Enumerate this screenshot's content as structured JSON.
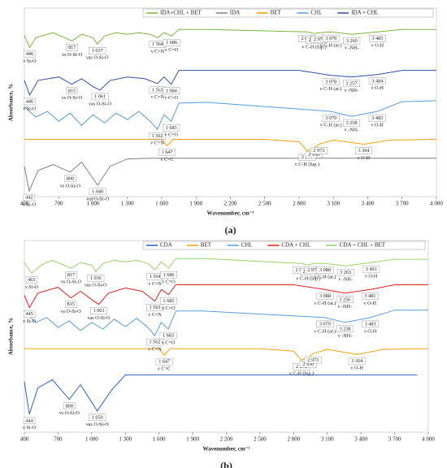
{
  "chart_data": [
    {
      "type": "line",
      "panel_label": "(a)",
      "x_label": "Wavenumber, cm⁻¹",
      "y_label": "Absorbance, %",
      "xlim": [
        400,
        4000
      ],
      "ylim": [
        0,
        100
      ],
      "xticks": [
        400,
        700,
        {
          "value": 1000,
          "label": "1 000"
        },
        {
          "value": 1300,
          "label": "1 300"
        },
        {
          "value": 1600,
          "label": "1 600"
        },
        {
          "value": 1900,
          "label": "1 900"
        },
        {
          "value": 2200,
          "label": "2 200"
        },
        {
          "value": 2500,
          "label": "2 500"
        },
        {
          "value": 2800,
          "label": "2 800"
        },
        {
          "value": 3100,
          "label": "3 100"
        },
        {
          "value": 3400,
          "label": "3 400"
        },
        {
          "value": 3700,
          "label": "3 700"
        },
        {
          "value": 4000,
          "label": "4 000"
        }
      ],
      "series": [
        {
          "name": "IDA+CHL + BET",
          "color": "#7cb342",
          "x": [
            400,
            446,
            500,
            650,
            817,
            900,
            1000,
            1037,
            1100,
            1200,
            1300,
            1400,
            1500,
            1564,
            1620,
            1686,
            1750,
            2000,
            2867,
            2932,
            2976,
            3079,
            3260,
            3485,
            3700,
            4000
          ],
          "values": [
            85.7,
            79.1,
            84.3,
            87.0,
            82.6,
            86.1,
            84.3,
            80.9,
            85.2,
            87.0,
            86.1,
            87.0,
            86.1,
            84.3,
            87.0,
            85.2,
            88.7,
            88.7,
            87.4,
            86.5,
            87.0,
            87.4,
            86.1,
            87.4,
            88.7,
            88.7
          ],
          "annotations": [
            {
              "value": 446,
              "label": "446",
              "text": "ν Si-O"
            },
            {
              "value": 817,
              "label": "817",
              "text": "νs O-Si-O"
            },
            {
              "value": 1037,
              "label": "1 037",
              "text": "νas O-Si-O"
            },
            {
              "value": 1564,
              "label": "1 564",
              "text": "ν C=N"
            },
            {
              "value": 1686,
              "label": "1 686",
              "text": "ν C=O"
            },
            {
              "value": 2867,
              "label": "2 867"
            },
            {
              "value": 2932,
              "label": "2 932",
              "text": "ν C-H (lup.)"
            },
            {
              "value": 2976,
              "label": "2 976"
            },
            {
              "value": 3079,
              "label": "3 079",
              "text": "ν C-H (ar.)"
            },
            {
              "value": 3260,
              "label": "3 260",
              "text": "ν -NH-"
            },
            {
              "value": 3485,
              "label": "3 485",
              "text": "ν O-H"
            }
          ]
        },
        {
          "name": "IDA",
          "color": "#808080",
          "x": [
            400,
            442,
            520,
            650,
            800,
            900,
            1040,
            1150,
            1300,
            1500,
            2000,
            4000
          ],
          "values": [
            16.1,
            3.0,
            13.9,
            17.0,
            13.0,
            18.3,
            6.1,
            16.1,
            20.0,
            20.4,
            20.4,
            20.4
          ],
          "annotations": [
            {
              "value": 442,
              "label": "442",
              "text": "ν Si-O"
            },
            {
              "value": 800,
              "label": "800",
              "text": "νs O-Si-O"
            },
            {
              "value": 1040,
              "label": "1 040",
              "text": "νas O-Si-O"
            }
          ]
        },
        {
          "name": "BET",
          "color": "#f0a30a",
          "x": [
            400,
            1000,
            1600,
            1647,
            1700,
            2500,
            2800,
            2870,
            2930,
            2973,
            3100,
            3364,
            3600,
            4000
          ],
          "values": [
            30.4,
            30.4,
            30.4,
            27.0,
            30.4,
            30.4,
            29.1,
            24.3,
            25.7,
            27.8,
            30.0,
            27.8,
            30.0,
            30.4
          ],
          "annotations": [
            {
              "value": 1647,
              "label": "1 647",
              "text": "ν C=C"
            },
            {
              "value": 2870,
              "label": "2 870",
              "text": "ν C-H (lup.)"
            },
            {
              "value": 2930,
              "label": "2 930"
            },
            {
              "value": 2973,
              "label": "2 973"
            },
            {
              "value": 3364,
              "label": "3 364",
              "text": "ν O-H"
            }
          ]
        },
        {
          "name": "CHL",
          "color": "#5b9bd5",
          "x": [
            400,
            500,
            600,
            700,
            800,
            900,
            1000,
            1100,
            1200,
            1300,
            1400,
            1500,
            1562,
            1620,
            1683,
            1750,
            2000,
            3079,
            3258,
            3483,
            3700,
            4000
          ],
          "values": [
            47.8,
            42.2,
            45.2,
            40.0,
            44.3,
            37.8,
            43.5,
            39.1,
            44.3,
            40.9,
            45.2,
            40.0,
            35.7,
            43.5,
            40.0,
            49.6,
            50.0,
            45.2,
            42.6,
            45.2,
            50.4,
            50.9
          ],
          "annotations": [
            {
              "value": 1562,
              "label": "1 562",
              "text": "ν C=N"
            },
            {
              "value": 1683,
              "label": "1 683",
              "text": "ν C=O"
            },
            {
              "value": 3079,
              "label": "3 079",
              "text": "ν C-H (ar.)"
            },
            {
              "value": 3258,
              "label": "3 258",
              "text": "ν -NH-"
            },
            {
              "value": 3483,
              "label": "3 483",
              "text": "ν O-H"
            }
          ]
        },
        {
          "name": "IDA + CHL",
          "color": "#2f4fa2",
          "x": [
            400,
            446,
            520,
            700,
            815,
            900,
            1000,
            1061,
            1150,
            1300,
            1450,
            1563,
            1620,
            1684,
            1750,
            2000,
            2800,
            3078,
            3257,
            3484,
            3700,
            4000
          ],
          "values": [
            61.7,
            53.9,
            61.7,
            63.5,
            59.6,
            62.6,
            58.3,
            56.5,
            61.7,
            63.5,
            62.6,
            60.0,
            63.5,
            59.6,
            67.0,
            67.0,
            67.0,
            64.3,
            63.5,
            64.8,
            67.0,
            67.0
          ],
          "annotations": [
            {
              "value": 446,
              "label": "446",
              "text": "ν Si-O"
            },
            {
              "value": 815,
              "label": "815",
              "text": "νs O-Si-O"
            },
            {
              "value": 1061,
              "label": "1 061",
              "text": "νas O-Si-O"
            },
            {
              "value": 1563,
              "label": "1 563",
              "text": "ν C=N"
            },
            {
              "value": 1684,
              "label": "1 684",
              "text": "ν C=O"
            },
            {
              "value": 3078,
              "label": "3 078",
              "text": "ν C-H (ar.)"
            },
            {
              "value": 3257,
              "label": "3 257",
              "text": "ν -NH-"
            },
            {
              "value": 3484,
              "label": "3 484",
              "text": "ν O-H"
            }
          ]
        }
      ]
    },
    {
      "type": "line",
      "panel_label": "(b)",
      "x_label": "Wavenumber, cm⁻¹",
      "y_label": "Absorbance, %",
      "xlim": [
        400,
        4000
      ],
      "ylim": [
        0,
        100
      ],
      "xticks": [
        400,
        700,
        {
          "value": 1000,
          "label": "1 000"
        },
        {
          "value": 1300,
          "label": "1 300"
        },
        {
          "value": 1600,
          "label": "1 600"
        },
        {
          "value": 1900,
          "label": "1 900"
        },
        {
          "value": 2200,
          "label": "2 200"
        },
        {
          "value": 2500,
          "label": "2 500"
        },
        {
          "value": 2800,
          "label": "2 800"
        },
        {
          "value": 3100,
          "label": "3 100"
        },
        {
          "value": 3400,
          "label": "3 400"
        },
        {
          "value": 3700,
          "label": "3 700"
        },
        {
          "value": 4000,
          "label": "4 000"
        }
      ],
      "series": [
        {
          "name": "CDA",
          "color": "#3060c0",
          "x": [
            400,
            444,
            520,
            650,
            800,
            900,
            1050,
            1180,
            1300,
            1500,
            2000,
            3900
          ],
          "values": [
            26.5,
            9.4,
            23.1,
            27.4,
            17.1,
            24.8,
            11.1,
            22.2,
            29.9,
            29.9,
            29.9,
            29.9
          ],
          "annotations": [
            {
              "value": 444,
              "label": "444",
              "text": "ν Si-O"
            },
            {
              "value": 800,
              "label": "800",
              "text": "νs O-Si-O"
            },
            {
              "value": 1050,
              "label": "1 050",
              "text": "νas O-Si-O"
            }
          ]
        },
        {
          "name": "BET",
          "color": "#f0a30a",
          "x": [
            400,
            1000,
            1600,
            1647,
            1700,
            2500,
            2800,
            2870,
            2930,
            2973,
            3100,
            3364,
            3600,
            4000
          ],
          "values": [
            43.6,
            43.6,
            43.6,
            40.2,
            43.6,
            43.6,
            42.3,
            37.6,
            38.9,
            41.0,
            43.2,
            40.6,
            43.2,
            43.6
          ],
          "annotations": [
            {
              "value": 1647,
              "label": "1 647",
              "text": "ν C=C"
            },
            {
              "value": 2870,
              "label": "2 870",
              "text": "ν C-H (lup.)"
            },
            {
              "value": 2930,
              "label": "2 930"
            },
            {
              "value": 2973,
              "label": "2 973"
            },
            {
              "value": 3364,
              "label": "3 364",
              "text": "ν O-H"
            }
          ]
        },
        {
          "name": "CHL",
          "color": "#5b9bd5",
          "x": [
            400,
            500,
            600,
            700,
            800,
            900,
            1000,
            1100,
            1200,
            1300,
            1400,
            1500,
            1562,
            1620,
            1683,
            1750,
            2000,
            3079,
            3258,
            3483,
            3700,
            4000
          ],
          "values": [
            63.2,
            57.3,
            59.8,
            54.7,
            58.1,
            53.0,
            57.3,
            53.8,
            59.0,
            55.1,
            59.4,
            54.7,
            50.4,
            57.3,
            53.8,
            63.2,
            63.2,
            59.8,
            57.3,
            59.8,
            63.7,
            63.7
          ],
          "annotations": [
            {
              "value": 1562,
              "label": "1 562",
              "text": "ν C=N"
            },
            {
              "value": 1683,
              "label": "1 683",
              "text": "ν C=O"
            },
            {
              "value": 3079,
              "label": "3 079",
              "text": "ν C-H (ar.)"
            },
            {
              "value": 3258,
              "label": "3 258",
              "text": "ν -NH-"
            },
            {
              "value": 3483,
              "label": "3 483",
              "text": "ν O-H"
            }
          ]
        },
        {
          "name": "CDA + CHL",
          "color": "#e02020",
          "x": [
            400,
            445,
            520,
            700,
            815,
            900,
            1000,
            1063,
            1150,
            1300,
            1450,
            1563,
            1620,
            1685,
            1750,
            2000,
            2800,
            3080,
            3256,
            3481,
            3700,
            4000
          ],
          "values": [
            71.4,
            65.0,
            72.6,
            75.6,
            70.1,
            73.5,
            69.2,
            66.7,
            72.6,
            75.2,
            73.5,
            68.4,
            74.4,
            71.8,
            76.9,
            76.9,
            76.9,
            74.4,
            72.6,
            74.4,
            76.9,
            76.9
          ],
          "annotations": [
            {
              "value": 445,
              "label": "445",
              "text": "ν Si-O"
            },
            {
              "value": 815,
              "label": "815",
              "text": "νs O-Si-O"
            },
            {
              "value": 1063,
              "label": "1 063",
              "text": "νas O-Si-O"
            },
            {
              "value": 1563,
              "label": "1 563",
              "text": "ν C=N"
            },
            {
              "value": 1685,
              "label": "1 685",
              "text": "ν C=O"
            },
            {
              "value": 3080,
              "label": "3 080",
              "text": "ν C-H (ar.)"
            },
            {
              "value": 3256,
              "label": "3 256",
              "text": "ν -NH-"
            },
            {
              "value": 3481,
              "label": "3 481",
              "text": "ν O-H"
            }
          ]
        },
        {
          "name": "CDA + CHL + BET",
          "color": "#9bd06f",
          "x": [
            400,
            465,
            550,
            650,
            817,
            900,
            1000,
            1036,
            1100,
            1200,
            1300,
            1400,
            1500,
            1564,
            1620,
            1686,
            1750,
            2000,
            2867,
            2932,
            2973,
            3080,
            3263,
            3491,
            3700,
            4000
          ],
          "values": [
            88.5,
            82.9,
            87.2,
            89.7,
            85.5,
            88.5,
            87.2,
            83.8,
            88.0,
            89.7,
            88.9,
            89.7,
            88.0,
            84.6,
            88.9,
            85.5,
            90.6,
            90.6,
            88.0,
            87.2,
            88.0,
            88.0,
            86.8,
            88.5,
            90.2,
            90.2
          ],
          "annotations": [
            {
              "value": 465,
              "label": "465",
              "text": "ν Si-O"
            },
            {
              "value": 817,
              "label": "817",
              "text": "νs O-Si-O"
            },
            {
              "value": 1036,
              "label": "1 036",
              "text": "νas O-Si-O"
            },
            {
              "value": 1564,
              "label": "1 564",
              "text": "ν C=N"
            },
            {
              "value": 1686,
              "label": "1 686",
              "text": "ν C=O"
            },
            {
              "value": 2867,
              "label": "2 867"
            },
            {
              "value": 2932,
              "label": "2 932",
              "text": "ν C-H (lup.)"
            },
            {
              "value": 2973,
              "label": "2 973"
            },
            {
              "value": 3080,
              "label": "3 080",
              "text": "ν C-H (ar.)"
            },
            {
              "value": 3263,
              "label": "3 263",
              "text": "ν -NH-"
            },
            {
              "value": 3491,
              "label": "3 491",
              "text": "ν O-H"
            }
          ]
        }
      ]
    }
  ]
}
